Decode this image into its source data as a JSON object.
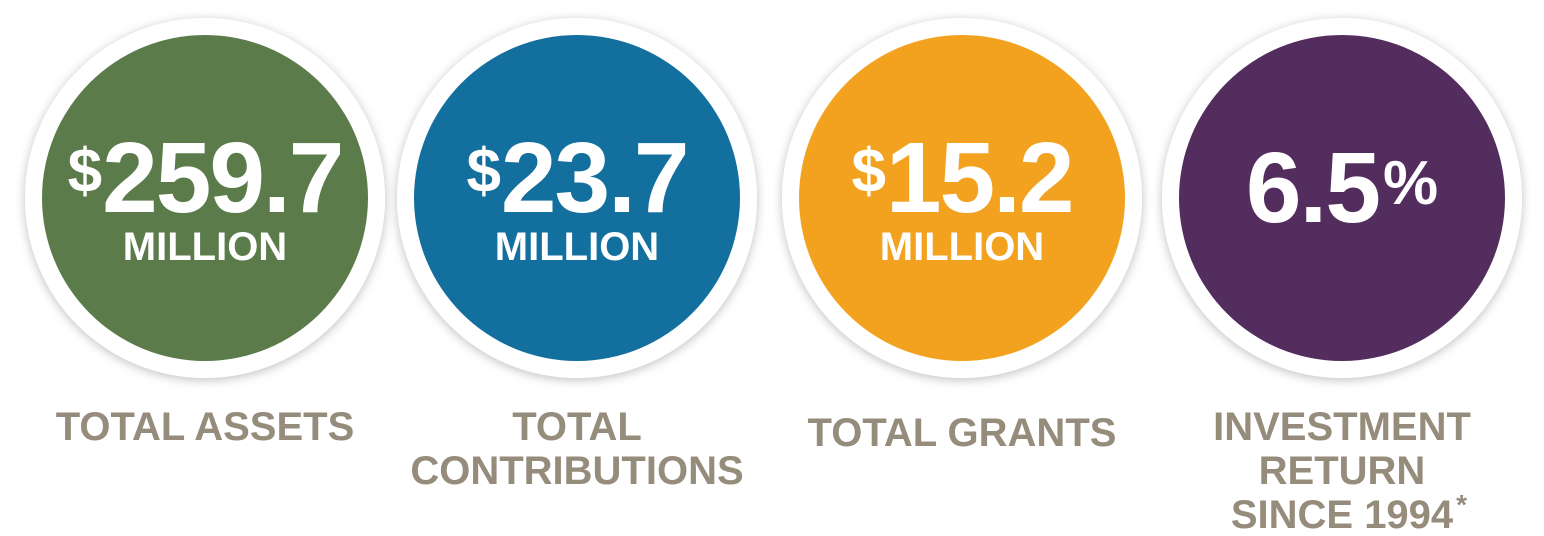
{
  "stats": [
    {
      "prefix": "$",
      "figure": "259.7",
      "unit": "MILLION",
      "label": [
        "TOTAL ASSETS"
      ],
      "color": "#5b7b4b"
    },
    {
      "prefix": "$",
      "figure": "23.7",
      "unit": "MILLION",
      "label": [
        "TOTAL",
        "CONTRIBUTIONS"
      ],
      "color": "#136f9d"
    },
    {
      "prefix": "$",
      "figure": "15.2",
      "unit": "MILLION",
      "label": [
        "TOTAL GRANTS"
      ],
      "color": "#f2a21e"
    },
    {
      "figure": "6.5",
      "suffix": "%",
      "label": [
        "INVESTMENT",
        "RETURN",
        "SINCE 1994"
      ],
      "footnote": "*",
      "color": "#532d5d"
    }
  ]
}
